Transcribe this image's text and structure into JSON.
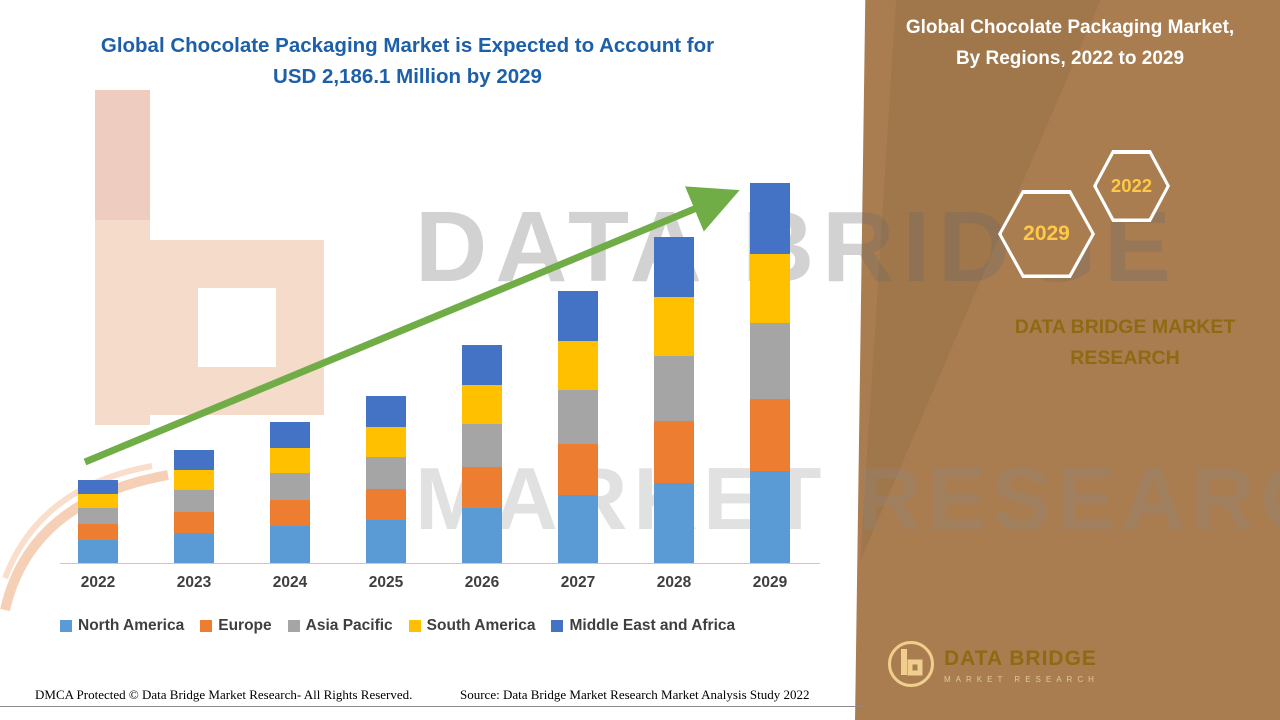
{
  "title": {
    "line1": "Global Chocolate Packaging Market is Expected to Account for",
    "line2": "USD 2,186.1 Million by 2029"
  },
  "side_panel": {
    "heading_line1": "Global Chocolate Packaging Market,",
    "heading_line2": "By Regions, 2022 to 2029",
    "badge_years": [
      "2029",
      "2022"
    ],
    "brand_line1": "DATA BRIDGE MARKET",
    "brand_line2": "RESEARCH"
  },
  "watermark": {
    "line1": "DATA BRIDGE",
    "line2": "MARKET RESEARCH"
  },
  "logo": {
    "name": "DATA BRIDGE",
    "subtext": "MARKET RESEARCH"
  },
  "footer": {
    "dmca": "DMCA Protected © Data Bridge Market Research- All Rights Reserved.",
    "source": "Source: Data Bridge Market Research Market Analysis Study 2022"
  },
  "colors": {
    "panel_bg": "#A97D50",
    "title_text": "#1D5FA9",
    "hex_year_text": "#FFC845",
    "brand_text": "#8F6A12",
    "trend_arrow": "#70AD47"
  },
  "chart_data": {
    "type": "bar",
    "stacked": true,
    "unit": "USD Million",
    "categories": [
      "2022",
      "2023",
      "2024",
      "2025",
      "2026",
      "2027",
      "2028",
      "2029"
    ],
    "series": [
      {
        "name": "North America",
        "color": "#5B9BD5",
        "values": [
          132.3,
          172.6,
          212.9,
          247.4,
          316.4,
          391.2,
          460.2,
          529.3
        ]
      },
      {
        "name": "Europe",
        "color": "#ED7D31",
        "values": [
          92.0,
          120.8,
          149.6,
          178.3,
          235.9,
          293.4,
          356.7,
          414.2
        ]
      },
      {
        "name": "Asia Pacific",
        "color": "#A5A5A5",
        "values": [
          92.0,
          126.6,
          155.3,
          184.1,
          247.4,
          310.7,
          374.0,
          437.2
        ]
      },
      {
        "name": "South America",
        "color": "#FFC000",
        "values": [
          80.5,
          115.1,
          143.8,
          172.6,
          224.4,
          281.9,
          339.4,
          397.0
        ]
      },
      {
        "name": "Middle East and Africa",
        "color": "#4472C4",
        "values": [
          80.5,
          115.1,
          149.6,
          178.4,
          230.1,
          287.7,
          345.3,
          408.4
        ]
      }
    ],
    "totals": [
      477.3,
      650.2,
      811.2,
      960.7,
      1254.2,
      1564.9,
      1875.6,
      2186.1
    ],
    "ylim": [
      0,
      2300
    ],
    "gridlines": false,
    "legend_position": "bottom",
    "trend_arrow": true
  }
}
